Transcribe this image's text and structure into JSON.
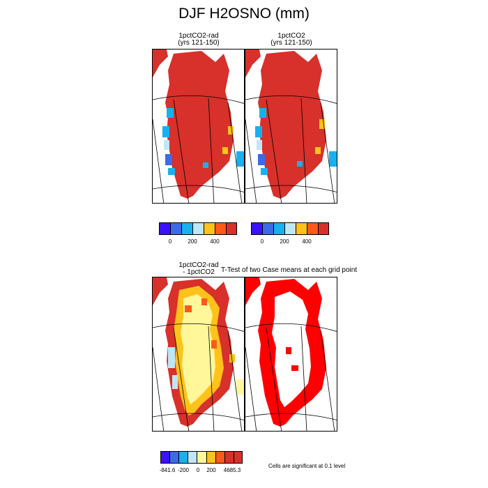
{
  "figure": {
    "title": "DJF H2OSNO (mm)"
  },
  "panels": {
    "top_left": {
      "title_line1": "1pctCO2-rad",
      "title_line2": "(yrs 121-150)"
    },
    "top_right": {
      "title_line1": "1pctCO2",
      "title_line2": "(yrs 121-150)"
    },
    "bottom_left": {
      "title_line1": "1pctCO2-rad",
      "title_line2": "- 1pctCO2"
    },
    "bottom_right": {
      "title": "T-Test of two Case means at each grid point"
    }
  },
  "colorbars": {
    "top": {
      "colors": [
        "#3a12ff",
        "#3c6be8",
        "#19b0f0",
        "#bfe6f5",
        "#ffc21a",
        "#ff5a1a",
        "#d8302a"
      ],
      "labels": [
        "0",
        "200",
        "400"
      ]
    },
    "bottom": {
      "colors": [
        "#3a12ff",
        "#3c6be8",
        "#19b0f0",
        "#bfe6f5",
        "#fff79a",
        "#ffc21a",
        "#ff5a1a",
        "#d8302a",
        "#d8302a"
      ],
      "labels": [
        "-841.6",
        "-200",
        "0",
        "200",
        "4685.3"
      ]
    }
  },
  "significance_note": "Cells are significant at 0.1 level",
  "colors": {
    "snow_high": "#d8302a",
    "significant": "#ff0000"
  }
}
